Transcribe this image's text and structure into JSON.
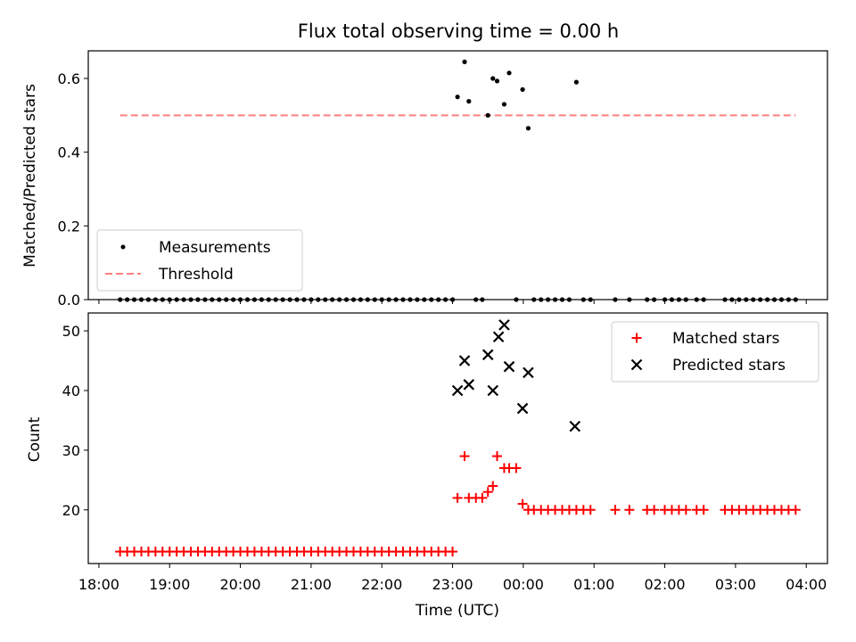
{
  "title": "Flux total observing time = 0.00 h",
  "colors": {
    "threshold": "#ff7f7f",
    "matched": "#ff0000",
    "predicted": "#000000",
    "measurements": "#000000"
  },
  "chart_data": [
    {
      "type": "scatter",
      "panel": "top",
      "ylabel": "Matched/Predicted stars",
      "ylim": [
        0,
        0.675
      ],
      "yticks": [
        0.0,
        0.2,
        0.4,
        0.6
      ],
      "ytick_labels": [
        "0.0",
        "0.2",
        "0.4",
        "0.6"
      ],
      "xlim_hours": [
        17.85,
        28.3
      ],
      "grid": false,
      "legend_position": "lower-left",
      "threshold": {
        "name": "Threshold",
        "value": 0.5,
        "x_start_hours": 18.3,
        "x_end_hours": 27.85
      },
      "series": [
        {
          "name": "Measurements",
          "marker": "dot",
          "x_hours": [
            18.3,
            18.4,
            18.5,
            18.6,
            18.7,
            18.8,
            18.9,
            19.0,
            19.1,
            19.2,
            19.3,
            19.4,
            19.5,
            19.6,
            19.7,
            19.8,
            19.9,
            20.0,
            20.1,
            20.2,
            20.3,
            20.4,
            20.5,
            20.6,
            20.7,
            20.8,
            20.9,
            21.0,
            21.1,
            21.2,
            21.3,
            21.4,
            21.5,
            21.6,
            21.7,
            21.8,
            21.9,
            22.0,
            22.1,
            22.2,
            22.3,
            22.4,
            22.5,
            22.6,
            22.7,
            22.8,
            22.9,
            23.0,
            23.07,
            23.17,
            23.23,
            23.33,
            23.42,
            23.5,
            23.57,
            23.63,
            23.73,
            23.8,
            23.9,
            23.99,
            24.07,
            24.15,
            24.25,
            24.35,
            24.45,
            24.55,
            24.65,
            24.75,
            24.85,
            24.95,
            25.3,
            25.5,
            25.75,
            25.85,
            26.0,
            26.1,
            26.2,
            26.3,
            26.45,
            26.55,
            26.85,
            26.95,
            27.05,
            27.15,
            27.25,
            27.35,
            27.45,
            27.55,
            27.65,
            27.75,
            27.85
          ],
          "y": [
            0,
            0,
            0,
            0,
            0,
            0,
            0,
            0,
            0,
            0,
            0,
            0,
            0,
            0,
            0,
            0,
            0,
            0,
            0,
            0,
            0,
            0,
            0,
            0,
            0,
            0,
            0,
            0,
            0,
            0,
            0,
            0,
            0,
            0,
            0,
            0,
            0,
            0,
            0,
            0,
            0,
            0,
            0,
            0,
            0,
            0,
            0,
            0,
            0.55,
            0.645,
            0.538,
            0,
            0,
            0.5,
            0.6,
            0.593,
            0.53,
            0.615,
            0,
            0.57,
            0.465,
            0,
            0,
            0,
            0,
            0,
            0,
            0.59,
            0,
            0,
            0,
            0,
            0,
            0,
            0,
            0,
            0,
            0,
            0,
            0,
            0,
            0,
            0,
            0,
            0,
            0,
            0,
            0,
            0,
            0,
            0
          ]
        }
      ]
    },
    {
      "type": "scatter",
      "panel": "bottom",
      "xlabel": "Time (UTC)",
      "ylabel": "Count",
      "ylim": [
        11,
        53
      ],
      "yticks": [
        20,
        30,
        40,
        50
      ],
      "ytick_labels": [
        "20",
        "30",
        "40",
        "50"
      ],
      "xlim_hours": [
        17.85,
        28.3
      ],
      "xticks_hours": [
        18,
        19,
        20,
        21,
        22,
        23,
        24,
        25,
        26,
        27,
        28
      ],
      "xtick_labels": [
        "18:00",
        "19:00",
        "20:00",
        "21:00",
        "22:00",
        "23:00",
        "00:00",
        "01:00",
        "02:00",
        "03:00",
        "04:00"
      ],
      "grid": false,
      "legend_position": "top-right",
      "series": [
        {
          "name": "Matched stars",
          "marker": "plus",
          "x_hours": [
            18.3,
            18.4,
            18.5,
            18.6,
            18.7,
            18.8,
            18.9,
            19.0,
            19.1,
            19.2,
            19.3,
            19.4,
            19.5,
            19.6,
            19.7,
            19.8,
            19.9,
            20.0,
            20.1,
            20.2,
            20.3,
            20.4,
            20.5,
            20.6,
            20.7,
            20.8,
            20.9,
            21.0,
            21.1,
            21.2,
            21.3,
            21.4,
            21.5,
            21.6,
            21.7,
            21.8,
            21.9,
            22.0,
            22.1,
            22.2,
            22.3,
            22.4,
            22.5,
            22.6,
            22.7,
            22.8,
            22.9,
            23.0,
            23.07,
            23.17,
            23.23,
            23.33,
            23.42,
            23.5,
            23.57,
            23.63,
            23.73,
            23.8,
            23.9,
            23.99,
            24.07,
            24.15,
            24.25,
            24.35,
            24.45,
            24.55,
            24.65,
            24.75,
            24.85,
            24.95,
            25.3,
            25.5,
            25.75,
            25.85,
            26.0,
            26.1,
            26.2,
            26.3,
            26.45,
            26.55,
            26.85,
            26.95,
            27.05,
            27.15,
            27.25,
            27.35,
            27.45,
            27.55,
            27.65,
            27.75,
            27.85
          ],
          "y": [
            13,
            13,
            13,
            13,
            13,
            13,
            13,
            13,
            13,
            13,
            13,
            13,
            13,
            13,
            13,
            13,
            13,
            13,
            13,
            13,
            13,
            13,
            13,
            13,
            13,
            13,
            13,
            13,
            13,
            13,
            13,
            13,
            13,
            13,
            13,
            13,
            13,
            13,
            13,
            13,
            13,
            13,
            13,
            13,
            13,
            13,
            13,
            13,
            22,
            29,
            22,
            22,
            22,
            23,
            24,
            29,
            27,
            27,
            27,
            21,
            20,
            20,
            20,
            20,
            20,
            20,
            20,
            20,
            20,
            20,
            20,
            20,
            20,
            20,
            20,
            20,
            20,
            20,
            20,
            20,
            20,
            20,
            20,
            20,
            20,
            20,
            20,
            20,
            20,
            20,
            20
          ]
        },
        {
          "name": "Predicted stars",
          "marker": "x",
          "x_hours": [
            23.07,
            23.17,
            23.23,
            23.5,
            23.57,
            23.65,
            23.73,
            23.8,
            23.99,
            24.07,
            24.73
          ],
          "y": [
            40,
            45,
            41,
            46,
            40,
            49,
            51,
            44,
            37,
            43,
            34
          ]
        }
      ]
    }
  ]
}
